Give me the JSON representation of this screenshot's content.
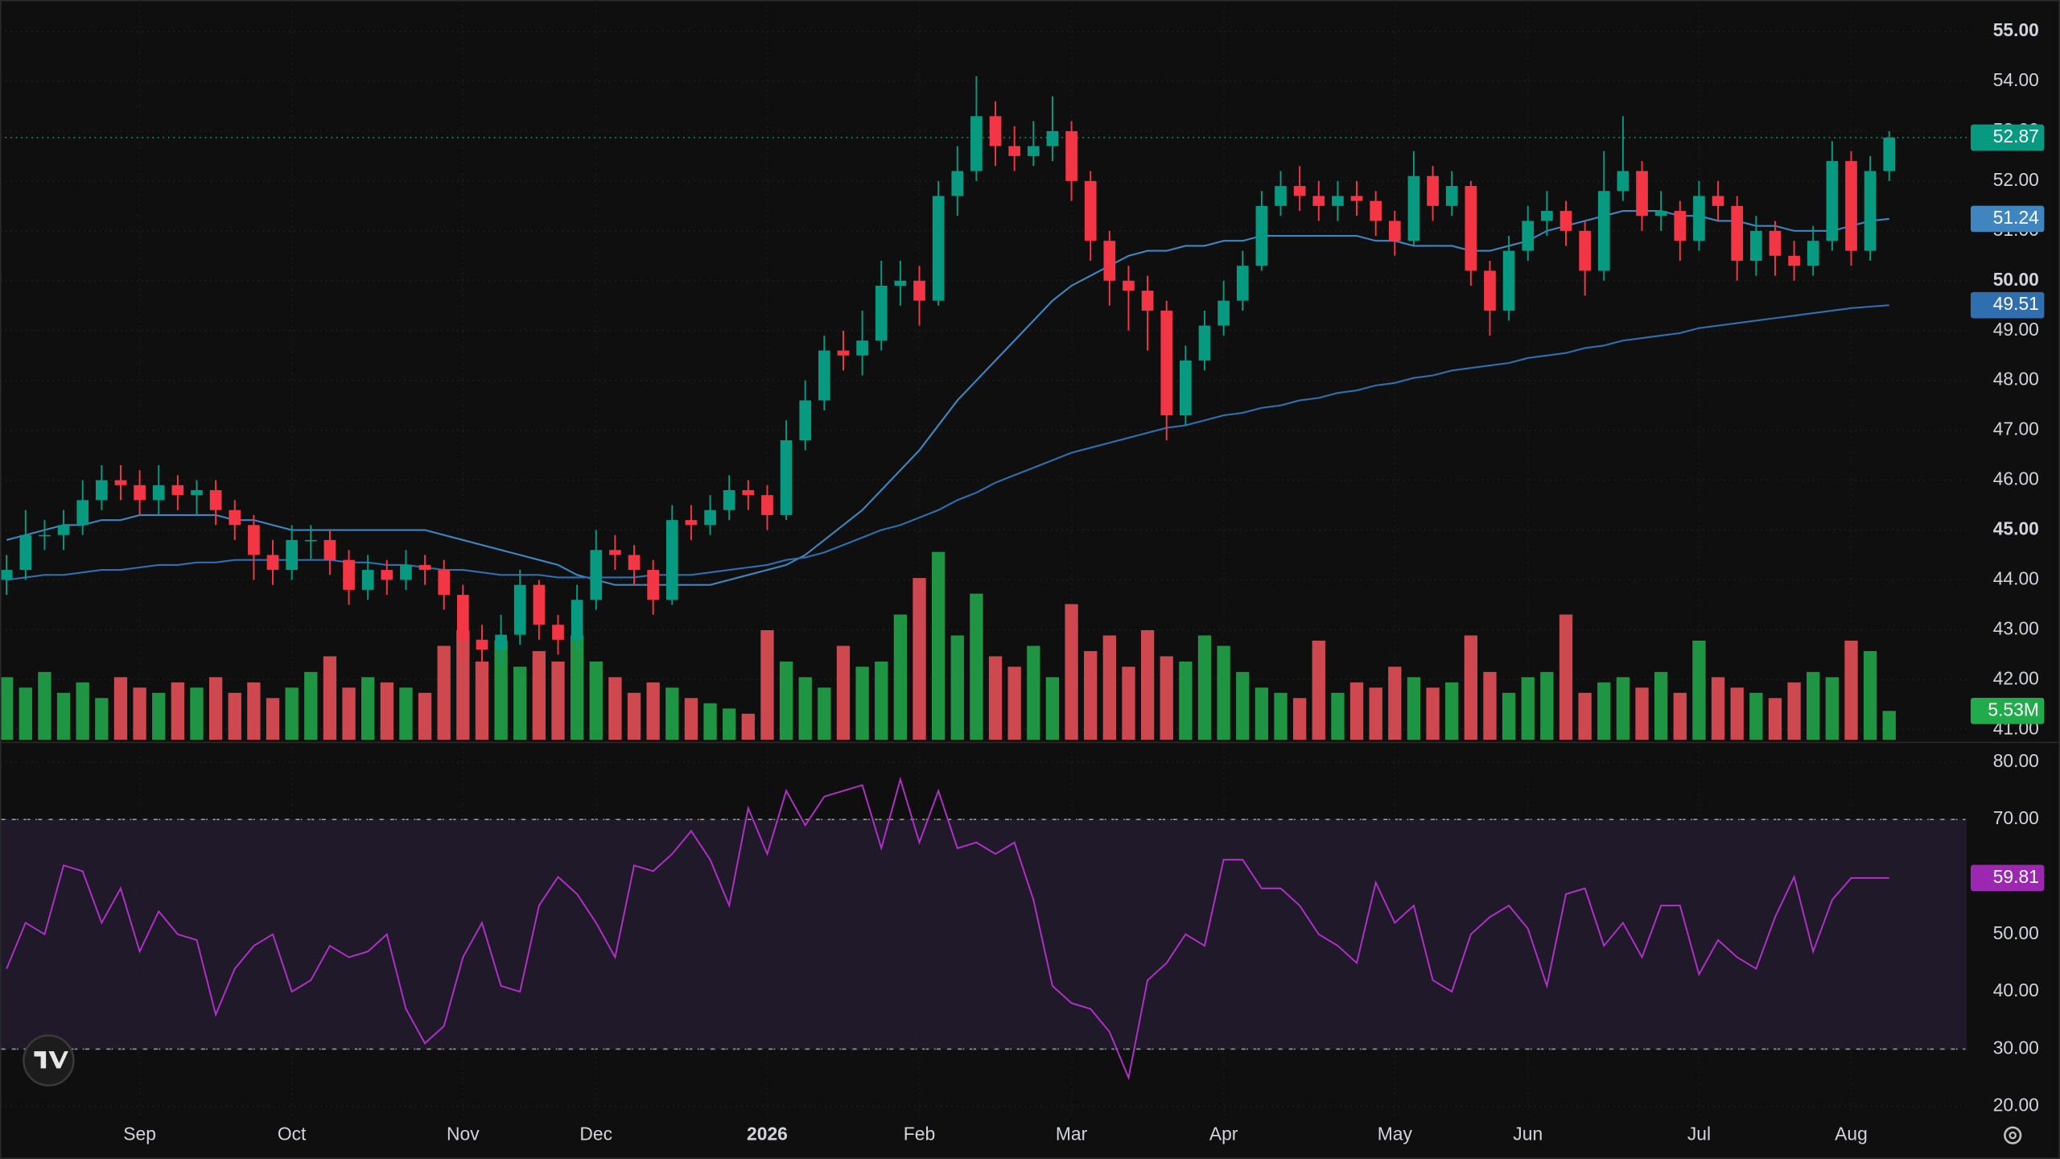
{
  "chart_data": {
    "type": "candlestick",
    "categories": [
      null,
      null,
      null,
      null,
      null,
      null,
      null,
      "Sep",
      null,
      null,
      null,
      null,
      null,
      null,
      null,
      "Oct",
      null,
      null,
      null,
      null,
      null,
      null,
      null,
      null,
      "Nov",
      null,
      null,
      null,
      null,
      null,
      null,
      "Dec",
      null,
      null,
      null,
      null,
      null,
      null,
      null,
      null,
      "2026",
      null,
      null,
      null,
      null,
      null,
      null,
      null,
      "Feb",
      null,
      null,
      null,
      null,
      null,
      null,
      null,
      "Mar",
      null,
      null,
      null,
      null,
      null,
      null,
      null,
      "Apr",
      null,
      null,
      null,
      null,
      null,
      null,
      null,
      null,
      "May",
      null,
      null,
      null,
      null,
      null,
      null,
      "Jun",
      null,
      null,
      null,
      null,
      null,
      null,
      null,
      null,
      "Jul",
      null,
      null,
      null,
      null,
      null,
      null,
      null,
      "Aug",
      null,
      null
    ],
    "open": [
      44.0,
      44.2,
      44.9,
      44.9,
      45.1,
      45.6,
      46.0,
      45.9,
      45.6,
      45.9,
      45.7,
      45.8,
      45.4,
      45.1,
      44.5,
      44.2,
      44.8,
      44.8,
      44.4,
      43.8,
      44.2,
      44.0,
      44.3,
      44.2,
      43.7,
      42.8,
      42.6,
      42.9,
      43.9,
      43.1,
      42.8,
      43.6,
      44.6,
      44.5,
      44.2,
      43.6,
      45.2,
      45.1,
      45.4,
      45.8,
      45.7,
      45.3,
      46.8,
      47.6,
      48.6,
      48.5,
      48.8,
      49.9,
      50.0,
      49.6,
      51.7,
      52.2,
      53.3,
      52.7,
      52.5,
      52.7,
      53.0,
      52.0,
      50.8,
      50.0,
      49.8,
      49.4,
      47.3,
      48.4,
      49.1,
      49.6,
      50.3,
      51.5,
      51.9,
      51.7,
      51.5,
      51.7,
      51.6,
      51.2,
      50.8,
      52.1,
      51.5,
      51.9,
      50.2,
      49.4,
      50.6,
      51.2,
      51.4,
      51.0,
      50.2,
      51.8,
      52.2,
      51.3,
      51.4,
      50.8,
      51.7,
      51.5,
      50.4,
      51.0,
      50.5,
      50.3,
      50.8,
      52.4,
      50.6,
      52.2
    ],
    "high": [
      44.5,
      45.4,
      45.2,
      45.4,
      46.0,
      46.3,
      46.3,
      46.2,
      46.3,
      46.1,
      46.0,
      46.0,
      45.6,
      45.3,
      44.8,
      45.1,
      45.1,
      45.0,
      44.6,
      44.5,
      44.4,
      44.6,
      44.5,
      44.4,
      43.9,
      43.1,
      43.3,
      44.2,
      44.0,
      43.3,
      43.9,
      45.0,
      44.9,
      44.7,
      44.4,
      45.5,
      45.5,
      45.7,
      46.1,
      46.0,
      45.9,
      47.2,
      48.0,
      48.9,
      49.0,
      49.4,
      50.4,
      50.4,
      50.3,
      52.0,
      52.7,
      54.1,
      53.6,
      53.1,
      53.2,
      53.7,
      53.2,
      52.2,
      51.0,
      50.3,
      50.1,
      49.6,
      48.7,
      49.4,
      50.0,
      50.6,
      51.8,
      52.2,
      52.3,
      52.0,
      52.0,
      52.0,
      51.8,
      51.4,
      52.6,
      52.3,
      52.2,
      52.0,
      50.4,
      50.9,
      51.5,
      51.8,
      51.6,
      51.2,
      52.6,
      53.3,
      52.4,
      51.8,
      51.6,
      52.0,
      52.0,
      51.7,
      51.3,
      51.2,
      50.8,
      51.1,
      52.8,
      52.6,
      52.5,
      53.0
    ],
    "low": [
      43.7,
      44.0,
      44.6,
      44.6,
      44.9,
      45.4,
      45.6,
      45.3,
      45.3,
      45.4,
      45.3,
      45.1,
      44.8,
      44.0,
      43.9,
      44.0,
      44.4,
      44.1,
      43.5,
      43.6,
      43.7,
      43.8,
      43.9,
      43.4,
      42.4,
      42.2,
      42.3,
      42.7,
      42.8,
      42.5,
      42.6,
      43.4,
      44.2,
      43.9,
      43.3,
      43.5,
      44.8,
      44.9,
      45.2,
      45.4,
      45.0,
      45.2,
      46.6,
      47.4,
      48.2,
      48.1,
      48.6,
      49.5,
      49.1,
      49.5,
      51.3,
      52.0,
      52.3,
      52.2,
      52.3,
      52.4,
      51.6,
      50.4,
      49.5,
      49.0,
      48.6,
      46.8,
      47.1,
      48.2,
      48.9,
      49.4,
      50.2,
      51.3,
      51.4,
      51.2,
      51.2,
      51.3,
      50.9,
      50.5,
      50.7,
      51.2,
      51.3,
      49.9,
      48.9,
      49.2,
      50.4,
      50.9,
      50.7,
      49.7,
      50.0,
      51.6,
      51.0,
      51.0,
      50.4,
      50.6,
      51.2,
      50.0,
      50.1,
      50.1,
      50.0,
      50.1,
      50.6,
      50.3,
      50.4,
      52.0
    ],
    "close": [
      44.2,
      44.9,
      44.9,
      45.1,
      45.6,
      46.0,
      45.9,
      45.6,
      45.9,
      45.7,
      45.8,
      45.4,
      45.1,
      44.5,
      44.2,
      44.8,
      44.8,
      44.4,
      43.8,
      44.2,
      44.0,
      44.3,
      44.2,
      43.7,
      42.8,
      42.6,
      42.9,
      43.9,
      43.1,
      42.8,
      43.6,
      44.6,
      44.5,
      44.2,
      43.6,
      45.2,
      45.1,
      45.4,
      45.8,
      45.7,
      45.3,
      46.8,
      47.6,
      48.6,
      48.5,
      48.8,
      49.9,
      50.0,
      49.6,
      51.7,
      52.2,
      53.3,
      52.7,
      52.5,
      52.7,
      53.0,
      52.0,
      50.8,
      50.0,
      49.8,
      49.4,
      47.3,
      48.4,
      49.1,
      49.6,
      50.3,
      51.5,
      51.9,
      51.7,
      51.5,
      51.7,
      51.6,
      51.2,
      50.8,
      52.1,
      51.5,
      51.9,
      50.2,
      49.4,
      50.6,
      51.2,
      51.4,
      51.0,
      50.2,
      51.8,
      52.2,
      51.3,
      51.4,
      50.8,
      51.7,
      51.5,
      50.4,
      51.0,
      50.5,
      50.3,
      50.8,
      52.4,
      50.6,
      52.2,
      52.87
    ],
    "up_color": "#089981",
    "down_color": "#f23645",
    "ylim": [
      40.74,
      55.63
    ],
    "yticks": [
      {
        "value": 55,
        "label": "55.00"
      },
      {
        "value": 54,
        "label": "54.00"
      },
      {
        "value": 53,
        "label": "53.00"
      },
      {
        "value": 52,
        "label": "52.00"
      },
      {
        "value": 51,
        "label": "51.00"
      },
      {
        "value": 50,
        "label": "50.00"
      },
      {
        "value": 49,
        "label": "49.00"
      },
      {
        "value": 48,
        "label": "48.00"
      },
      {
        "value": 47,
        "label": "47.00"
      },
      {
        "value": 46,
        "label": "46.00"
      },
      {
        "value": 45,
        "label": "45.00"
      },
      {
        "value": 44,
        "label": "44.00"
      },
      {
        "value": 43,
        "label": "43.00"
      },
      {
        "value": 42,
        "label": "42.00"
      },
      {
        "value": 41,
        "label": "41.00"
      }
    ],
    "grid": true,
    "last_price_line": true,
    "moving_averages": [
      {
        "color": "#3f86c0",
        "values": [
          44.8,
          44.9,
          45.0,
          45.1,
          45.1,
          45.2,
          45.2,
          45.3,
          45.3,
          45.3,
          45.3,
          45.3,
          45.2,
          45.2,
          45.1,
          45.0,
          45.0,
          45.0,
          45.0,
          45.0,
          45.0,
          45.0,
          45.0,
          44.9,
          44.8,
          44.7,
          44.6,
          44.5,
          44.4,
          44.3,
          44.1,
          44.0,
          43.9,
          43.9,
          43.9,
          43.9,
          43.9,
          43.9,
          44.0,
          44.1,
          44.2,
          44.3,
          44.5,
          44.8,
          45.1,
          45.4,
          45.8,
          46.2,
          46.6,
          47.1,
          47.6,
          48.0,
          48.4,
          48.8,
          49.2,
          49.6,
          49.9,
          50.1,
          50.3,
          50.5,
          50.6,
          50.6,
          50.7,
          50.7,
          50.8,
          50.8,
          50.9,
          50.9,
          50.9,
          50.9,
          50.9,
          50.9,
          50.8,
          50.8,
          50.7,
          50.7,
          50.7,
          50.6,
          50.6,
          50.7,
          50.8,
          51.0,
          51.1,
          51.2,
          51.3,
          51.4,
          51.4,
          51.4,
          51.3,
          51.3,
          51.2,
          51.2,
          51.1,
          51.1,
          51.0,
          51.0,
          51.0,
          51.1,
          51.2,
          51.24
        ]
      },
      {
        "color": "#2f6fb0",
        "values": [
          44.0,
          44.05,
          44.1,
          44.1,
          44.15,
          44.2,
          44.2,
          44.25,
          44.3,
          44.3,
          44.35,
          44.35,
          44.4,
          44.4,
          44.4,
          44.4,
          44.4,
          44.4,
          44.35,
          44.35,
          44.3,
          44.3,
          44.25,
          44.2,
          44.2,
          44.15,
          44.1,
          44.1,
          44.1,
          44.05,
          44.05,
          44.05,
          44.05,
          44.05,
          44.1,
          44.1,
          44.1,
          44.15,
          44.2,
          44.25,
          44.3,
          44.4,
          44.45,
          44.55,
          44.7,
          44.85,
          45.0,
          45.1,
          45.25,
          45.4,
          45.6,
          45.75,
          45.95,
          46.1,
          46.25,
          46.4,
          46.55,
          46.65,
          46.75,
          46.85,
          46.95,
          47.05,
          47.1,
          47.2,
          47.3,
          47.35,
          47.45,
          47.5,
          47.6,
          47.65,
          47.75,
          47.8,
          47.9,
          47.95,
          48.05,
          48.1,
          48.2,
          48.25,
          48.3,
          48.35,
          48.45,
          48.5,
          48.55,
          48.65,
          48.7,
          48.8,
          48.85,
          48.9,
          48.95,
          49.05,
          49.1,
          49.15,
          49.2,
          49.25,
          49.3,
          49.35,
          49.4,
          49.45,
          49.48,
          49.51
        ]
      }
    ],
    "volume": {
      "up_color": "#22ab4b",
      "down_color": "#f0525a",
      "values": [
        12,
        10,
        13,
        9,
        11,
        8,
        12,
        10,
        9,
        11,
        10,
        12,
        9,
        11,
        8,
        10,
        13,
        16,
        10,
        12,
        11,
        10,
        9,
        18,
        21,
        15,
        19,
        14,
        17,
        15,
        20,
        15,
        12,
        9,
        11,
        10,
        8,
        7,
        6,
        5,
        21,
        15,
        12,
        10,
        18,
        14,
        15,
        24,
        31,
        36,
        20,
        28,
        16,
        14,
        18,
        12,
        26,
        17,
        20,
        14,
        21,
        16,
        15,
        20,
        18,
        13,
        10,
        9,
        8,
        19,
        9,
        11,
        10,
        14,
        12,
        10,
        11,
        20,
        13,
        9,
        12,
        13,
        24,
        9,
        11,
        12,
        10,
        13,
        9,
        19,
        12,
        10,
        9,
        8,
        11,
        13,
        12,
        19,
        17,
        5.53
      ],
      "last_label": "5.53M"
    },
    "rsi": {
      "color": "#b030c8",
      "values": [
        44,
        52,
        50,
        62,
        61,
        52,
        58,
        47,
        54,
        50,
        49,
        36,
        44,
        48,
        50,
        40,
        42,
        48,
        46,
        47,
        50,
        37,
        31,
        34,
        46,
        52,
        41,
        40,
        55,
        60,
        57,
        52,
        46,
        62,
        61,
        64,
        68,
        63,
        55,
        72,
        64,
        75,
        69,
        74,
        75,
        76,
        65,
        77,
        66,
        75,
        65,
        66,
        64,
        66,
        56,
        41,
        38,
        37,
        33,
        25,
        42,
        45,
        50,
        48,
        63,
        63,
        58,
        58,
        55,
        50,
        48,
        45,
        59,
        52,
        55,
        42,
        40,
        50,
        53,
        55,
        51,
        41,
        57,
        58,
        48,
        52,
        46,
        55,
        55,
        43,
        49,
        46,
        44,
        53,
        60,
        47,
        56,
        59.81,
        59.81,
        59.81
      ],
      "ylim": [
        18.17,
        83.43
      ],
      "yticks": [
        {
          "value": 80,
          "label": "80.00"
        },
        {
          "value": 70,
          "label": "70.00"
        },
        {
          "value": 60,
          "label": "60.00"
        },
        {
          "value": 50,
          "label": "50.00"
        },
        {
          "value": 40,
          "label": "40.00"
        },
        {
          "value": 30,
          "label": "30.00"
        },
        {
          "value": 20,
          "label": "20.00"
        }
      ],
      "band": [
        30,
        70
      ],
      "band_color": "#7e57c2"
    }
  }
}
